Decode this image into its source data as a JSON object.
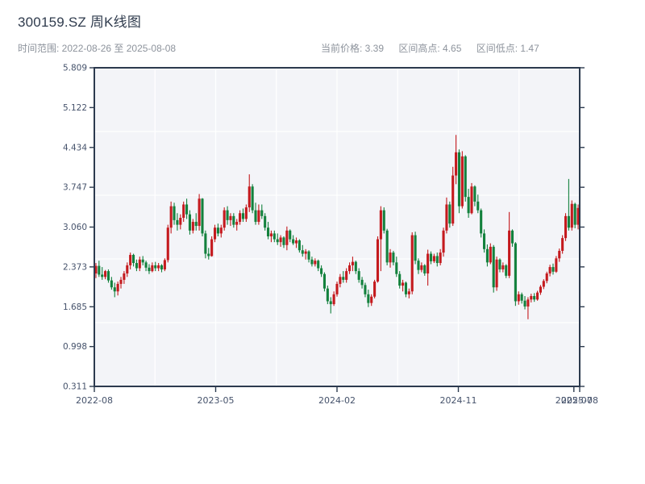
{
  "header": {
    "title": "300159.SZ 周K线图",
    "date_range_label": "时间范围: 2022-08-26 至 2025-08-08",
    "stats": {
      "current_price_label": "当前价格: 3.39",
      "range_high_label": "区间高点: 4.65",
      "range_low_label": "区间低点: 1.47"
    }
  },
  "chart_data": {
    "type": "candlestick",
    "symbol": "300159.SZ",
    "period": "weekly",
    "title": "300159.SZ 周K线图",
    "date_start": "2022-08-26",
    "date_end": "2025-08-08",
    "current_price": 3.39,
    "range_high": 4.65,
    "range_low": 1.47,
    "colors": {
      "up": "#c41a1e",
      "down": "#13813d",
      "background": "#f3f4f8",
      "grid": "#ffffff",
      "spine": "#2c3a4e",
      "label": "#45526b"
    },
    "grid": {
      "vertical": 8,
      "horizontal": 5
    },
    "y_axis": {
      "min": 0.311,
      "max": 5.809,
      "ticks": [
        5.809,
        5.122,
        4.434,
        3.747,
        3.06,
        2.373,
        1.685,
        0.998,
        0.311
      ]
    },
    "x_axis": {
      "ticks": [
        {
          "label": "2022-08",
          "pos": 0.0
        },
        {
          "label": "2023-05",
          "pos": 0.25
        },
        {
          "label": "2024-02",
          "pos": 0.5
        },
        {
          "label": "2024-11",
          "pos": 0.75
        },
        {
          "label": "2025-07",
          "pos": 0.988
        },
        {
          "label": "2025-08",
          "pos": 1.0
        }
      ]
    },
    "candles_format": [
      "date",
      "open",
      "high",
      "low",
      "close"
    ],
    "candles": [
      [
        "2022-08-26",
        2.26,
        2.44,
        2.18,
        2.39
      ],
      [
        "2022-09-02",
        2.39,
        2.48,
        2.2,
        2.24
      ],
      [
        "2022-09-09",
        2.24,
        2.37,
        2.15,
        2.2
      ],
      [
        "2022-09-16",
        2.2,
        2.32,
        2.16,
        2.3
      ],
      [
        "2022-09-23",
        2.3,
        2.33,
        2.1,
        2.14
      ],
      [
        "2022-09-30",
        2.14,
        2.2,
        1.98,
        2.02
      ],
      [
        "2022-10-07",
        2.02,
        2.1,
        1.85,
        1.95
      ],
      [
        "2022-10-14",
        1.95,
        2.12,
        1.88,
        2.08
      ],
      [
        "2022-10-21",
        2.08,
        2.2,
        2.0,
        2.15
      ],
      [
        "2022-10-28",
        2.15,
        2.3,
        2.08,
        2.26
      ],
      [
        "2022-11-04",
        2.26,
        2.45,
        2.2,
        2.4
      ],
      [
        "2022-11-11",
        2.4,
        2.62,
        2.33,
        2.58
      ],
      [
        "2022-11-18",
        2.58,
        2.6,
        2.38,
        2.44
      ],
      [
        "2022-11-25",
        2.44,
        2.5,
        2.3,
        2.35
      ],
      [
        "2022-12-02",
        2.35,
        2.55,
        2.3,
        2.5
      ],
      [
        "2022-12-09",
        2.5,
        2.56,
        2.4,
        2.45
      ],
      [
        "2022-12-16",
        2.45,
        2.48,
        2.3,
        2.36
      ],
      [
        "2022-12-23",
        2.36,
        2.42,
        2.25,
        2.3
      ],
      [
        "2022-12-30",
        2.3,
        2.45,
        2.28,
        2.4
      ],
      [
        "2023-01-06",
        2.4,
        2.46,
        2.3,
        2.35
      ],
      [
        "2023-01-13",
        2.35,
        2.44,
        2.3,
        2.4
      ],
      [
        "2023-01-20",
        2.4,
        2.42,
        2.28,
        2.33
      ],
      [
        "2023-01-27",
        2.33,
        2.52,
        2.3,
        2.49
      ],
      [
        "2023-02-03",
        2.49,
        3.1,
        2.45,
        3.05
      ],
      [
        "2023-02-10",
        3.05,
        3.5,
        2.95,
        3.42
      ],
      [
        "2023-02-17",
        3.42,
        3.48,
        3.1,
        3.18
      ],
      [
        "2023-02-24",
        3.18,
        3.3,
        3.0,
        3.1
      ],
      [
        "2023-03-03",
        3.1,
        3.28,
        3.02,
        3.22
      ],
      [
        "2023-03-10",
        3.22,
        3.5,
        3.15,
        3.45
      ],
      [
        "2023-03-17",
        3.45,
        3.55,
        3.2,
        3.28
      ],
      [
        "2023-03-24",
        3.28,
        3.35,
        2.93,
        3.0
      ],
      [
        "2023-03-31",
        3.0,
        3.2,
        2.95,
        3.15
      ],
      [
        "2023-04-07",
        3.15,
        3.3,
        3.0,
        3.08
      ],
      [
        "2023-04-14",
        3.08,
        3.63,
        3.0,
        3.55
      ],
      [
        "2023-04-21",
        3.55,
        3.56,
        2.9,
        2.95
      ],
      [
        "2023-04-28",
        2.95,
        3.0,
        2.52,
        2.6
      ],
      [
        "2023-05-05",
        2.6,
        2.7,
        2.5,
        2.56
      ],
      [
        "2023-05-12",
        2.56,
        2.9,
        2.55,
        2.85
      ],
      [
        "2023-05-19",
        2.85,
        3.1,
        2.8,
        3.05
      ],
      [
        "2023-05-26",
        3.05,
        3.12,
        2.9,
        2.95
      ],
      [
        "2023-06-02",
        2.95,
        3.1,
        2.88,
        3.05
      ],
      [
        "2023-06-09",
        3.05,
        3.4,
        3.0,
        3.35
      ],
      [
        "2023-06-16",
        3.35,
        3.42,
        3.1,
        3.18
      ],
      [
        "2023-06-23",
        3.18,
        3.3,
        3.08,
        3.25
      ],
      [
        "2023-06-30",
        3.25,
        3.3,
        3.05,
        3.1
      ],
      [
        "2023-07-07",
        3.1,
        3.2,
        3.0,
        3.15
      ],
      [
        "2023-07-14",
        3.15,
        3.35,
        3.1,
        3.3
      ],
      [
        "2023-07-21",
        3.3,
        3.38,
        3.15,
        3.2
      ],
      [
        "2023-07-28",
        3.2,
        3.45,
        3.15,
        3.4
      ],
      [
        "2023-08-04",
        3.4,
        3.97,
        3.32,
        3.76
      ],
      [
        "2023-08-11",
        3.76,
        3.8,
        3.3,
        3.35
      ],
      [
        "2023-08-18",
        3.35,
        3.48,
        3.1,
        3.15
      ],
      [
        "2023-08-25",
        3.15,
        3.45,
        3.1,
        3.35
      ],
      [
        "2023-09-01",
        3.35,
        3.45,
        3.2,
        3.25
      ],
      [
        "2023-09-08",
        3.25,
        3.3,
        3.0,
        3.05
      ],
      [
        "2023-09-15",
        3.05,
        3.15,
        2.85,
        2.9
      ],
      [
        "2023-09-22",
        2.9,
        3.0,
        2.8,
        2.95
      ],
      [
        "2023-09-29",
        2.95,
        3.0,
        2.8,
        2.85
      ],
      [
        "2023-10-06",
        2.85,
        2.95,
        2.75,
        2.8
      ],
      [
        "2023-10-13",
        2.8,
        2.92,
        2.72,
        2.88
      ],
      [
        "2023-10-20",
        2.88,
        2.9,
        2.7,
        2.75
      ],
      [
        "2023-10-27",
        2.75,
        3.07,
        2.66,
        3.0
      ],
      [
        "2023-11-03",
        3.0,
        3.02,
        2.8,
        2.85
      ],
      [
        "2023-11-10",
        2.85,
        2.92,
        2.75,
        2.78
      ],
      [
        "2023-11-17",
        2.78,
        2.88,
        2.7,
        2.83
      ],
      [
        "2023-11-24",
        2.83,
        2.85,
        2.62,
        2.66
      ],
      [
        "2023-12-01",
        2.66,
        2.75,
        2.55,
        2.6
      ],
      [
        "2023-12-08",
        2.6,
        2.68,
        2.5,
        2.64
      ],
      [
        "2023-12-15",
        2.64,
        2.66,
        2.45,
        2.5
      ],
      [
        "2023-12-22",
        2.5,
        2.55,
        2.38,
        2.42
      ],
      [
        "2023-12-29",
        2.42,
        2.52,
        2.38,
        2.48
      ],
      [
        "2024-01-05",
        2.48,
        2.5,
        2.3,
        2.35
      ],
      [
        "2024-01-12",
        2.35,
        2.4,
        2.2,
        2.25
      ],
      [
        "2024-01-19",
        2.25,
        2.28,
        1.95,
        2.0
      ],
      [
        "2024-01-26",
        2.0,
        2.05,
        1.73,
        1.78
      ],
      [
        "2024-02-02",
        1.78,
        1.85,
        1.57,
        1.73
      ],
      [
        "2024-02-09",
        1.73,
        1.95,
        1.7,
        1.9
      ],
      [
        "2024-02-16",
        1.9,
        2.12,
        1.86,
        2.08
      ],
      [
        "2024-02-23",
        2.08,
        2.25,
        2.02,
        2.2
      ],
      [
        "2024-03-01",
        2.2,
        2.3,
        2.1,
        2.15
      ],
      [
        "2024-03-08",
        2.15,
        2.35,
        2.1,
        2.3
      ],
      [
        "2024-03-15",
        2.3,
        2.45,
        2.25,
        2.4
      ],
      [
        "2024-03-22",
        2.4,
        2.55,
        2.3,
        2.46
      ],
      [
        "2024-03-29",
        2.46,
        2.48,
        2.25,
        2.3
      ],
      [
        "2024-04-05",
        2.3,
        2.35,
        2.1,
        2.15
      ],
      [
        "2024-04-12",
        2.15,
        2.2,
        2.0,
        2.06
      ],
      [
        "2024-04-19",
        2.06,
        2.1,
        1.85,
        1.9
      ],
      [
        "2024-04-26",
        1.9,
        1.98,
        1.68,
        1.75
      ],
      [
        "2024-05-03",
        1.75,
        1.9,
        1.7,
        1.86
      ],
      [
        "2024-05-10",
        1.86,
        2.15,
        1.83,
        2.12
      ],
      [
        "2024-05-17",
        2.12,
        2.9,
        2.1,
        2.85
      ],
      [
        "2024-05-24",
        2.85,
        3.42,
        2.3,
        3.35
      ],
      [
        "2024-05-31",
        3.35,
        3.4,
        2.95,
        3.0
      ],
      [
        "2024-06-07",
        3.0,
        3.03,
        2.4,
        2.45
      ],
      [
        "2024-06-14",
        2.45,
        2.68,
        2.36,
        2.62
      ],
      [
        "2024-06-21",
        2.62,
        2.65,
        2.4,
        2.45
      ],
      [
        "2024-06-28",
        2.45,
        2.55,
        2.2,
        2.25
      ],
      [
        "2024-07-05",
        2.25,
        2.3,
        2.0,
        2.05
      ],
      [
        "2024-07-12",
        2.05,
        2.15,
        1.95,
        2.1
      ],
      [
        "2024-07-19",
        2.1,
        2.12,
        1.85,
        1.9
      ],
      [
        "2024-07-26",
        1.9,
        2.0,
        1.83,
        1.95
      ],
      [
        "2024-08-02",
        1.95,
        2.97,
        1.9,
        2.92
      ],
      [
        "2024-08-09",
        2.92,
        2.98,
        2.42,
        2.48
      ],
      [
        "2024-08-16",
        2.48,
        2.52,
        2.25,
        2.32
      ],
      [
        "2024-08-23",
        2.32,
        2.45,
        2.28,
        2.4
      ],
      [
        "2024-08-30",
        2.4,
        2.42,
        2.22,
        2.26
      ],
      [
        "2024-09-06",
        2.26,
        2.67,
        2.05,
        2.6
      ],
      [
        "2024-09-13",
        2.6,
        2.64,
        2.42,
        2.47
      ],
      [
        "2024-09-20",
        2.47,
        2.6,
        2.44,
        2.56
      ],
      [
        "2024-09-27",
        2.56,
        2.62,
        2.38,
        2.44
      ],
      [
        "2024-10-04",
        2.44,
        2.68,
        2.4,
        2.62
      ],
      [
        "2024-10-11",
        2.62,
        3.05,
        2.55,
        3.0
      ],
      [
        "2024-10-18",
        3.0,
        3.57,
        2.95,
        3.45
      ],
      [
        "2024-10-25",
        3.45,
        3.5,
        3.05,
        3.12
      ],
      [
        "2024-11-01",
        3.12,
        4.1,
        3.08,
        3.95
      ],
      [
        "2024-11-08",
        3.95,
        4.65,
        3.8,
        4.35
      ],
      [
        "2024-11-15",
        4.35,
        4.4,
        3.3,
        3.42
      ],
      [
        "2024-11-22",
        3.42,
        4.37,
        3.38,
        4.28
      ],
      [
        "2024-11-29",
        4.28,
        4.3,
        3.5,
        3.58
      ],
      [
        "2024-12-06",
        3.58,
        3.72,
        3.22,
        3.3
      ],
      [
        "2024-12-13",
        3.3,
        3.82,
        3.28,
        3.76
      ],
      [
        "2024-12-20",
        3.76,
        3.78,
        3.42,
        3.5
      ],
      [
        "2024-12-27",
        3.5,
        3.62,
        3.3,
        3.35
      ],
      [
        "2025-01-03",
        3.35,
        3.38,
        2.88,
        2.95
      ],
      [
        "2025-01-10",
        2.95,
        3.02,
        2.62,
        2.68
      ],
      [
        "2025-01-17",
        2.68,
        2.76,
        2.38,
        2.45
      ],
      [
        "2025-01-24",
        2.45,
        2.78,
        2.42,
        2.72
      ],
      [
        "2025-01-31",
        2.72,
        2.75,
        1.93,
        2.02
      ],
      [
        "2025-02-07",
        2.02,
        2.55,
        1.96,
        2.5
      ],
      [
        "2025-02-14",
        2.5,
        2.52,
        2.28,
        2.33
      ],
      [
        "2025-02-21",
        2.33,
        2.45,
        2.28,
        2.4
      ],
      [
        "2025-02-28",
        2.4,
        2.42,
        2.18,
        2.22
      ],
      [
        "2025-03-07",
        2.22,
        3.32,
        2.18,
        3.0
      ],
      [
        "2025-03-14",
        3.0,
        3.02,
        2.72,
        2.78
      ],
      [
        "2025-03-21",
        2.78,
        2.8,
        1.7,
        1.78
      ],
      [
        "2025-03-28",
        1.78,
        1.95,
        1.72,
        1.9
      ],
      [
        "2025-04-04",
        1.9,
        1.93,
        1.74,
        1.79
      ],
      [
        "2025-04-11",
        1.79,
        1.87,
        1.64,
        1.69
      ],
      [
        "2025-04-18",
        1.69,
        1.85,
        1.47,
        1.81
      ],
      [
        "2025-04-25",
        1.81,
        1.91,
        1.76,
        1.87
      ],
      [
        "2025-05-02",
        1.87,
        1.92,
        1.77,
        1.81
      ],
      [
        "2025-05-09",
        1.81,
        1.96,
        1.79,
        1.93
      ],
      [
        "2025-05-16",
        1.93,
        2.06,
        1.89,
        2.03
      ],
      [
        "2025-05-23",
        2.03,
        2.16,
        1.99,
        2.13
      ],
      [
        "2025-05-30",
        2.13,
        2.29,
        2.09,
        2.26
      ],
      [
        "2025-06-06",
        2.26,
        2.41,
        2.21,
        2.37
      ],
      [
        "2025-06-13",
        2.37,
        2.43,
        2.24,
        2.29
      ],
      [
        "2025-06-20",
        2.29,
        2.56,
        2.27,
        2.52
      ],
      [
        "2025-06-27",
        2.52,
        2.69,
        2.46,
        2.65
      ],
      [
        "2025-07-04",
        2.65,
        2.92,
        2.6,
        2.87
      ],
      [
        "2025-07-11",
        2.87,
        3.3,
        2.82,
        3.25
      ],
      [
        "2025-07-18",
        3.25,
        3.89,
        3.0,
        3.05
      ],
      [
        "2025-07-25",
        3.05,
        3.52,
        3.0,
        3.46
      ],
      [
        "2025-08-01",
        3.46,
        3.48,
        3.04,
        3.1
      ],
      [
        "2025-08-08",
        3.1,
        3.45,
        3.02,
        3.39
      ]
    ]
  }
}
